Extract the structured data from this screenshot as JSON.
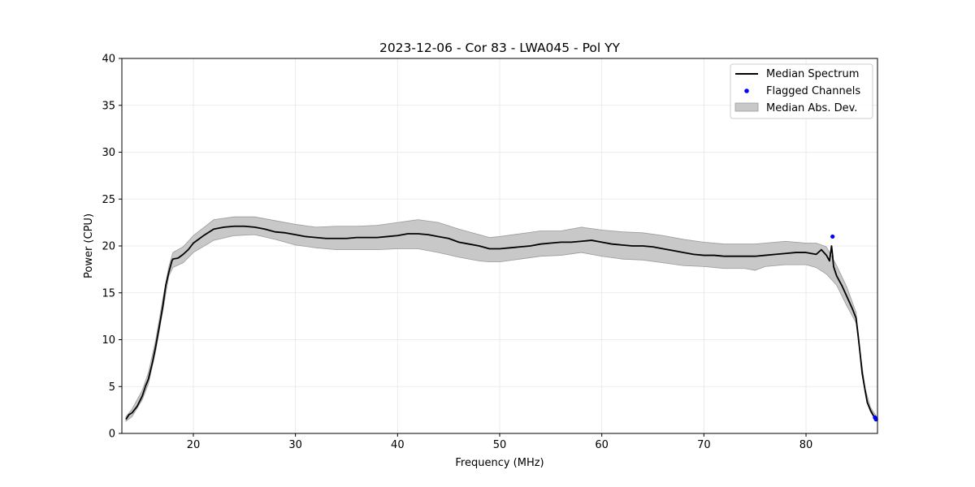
{
  "chart_data": {
    "type": "line",
    "title": "2023-12-06 - Cor 83 - LWA045 - Pol YY",
    "xlabel": "Frequency (MHz)",
    "ylabel": "Power (CPU)",
    "xlim": [
      13.0,
      87.0
    ],
    "ylim": [
      0,
      40
    ],
    "xticks": [
      20,
      30,
      40,
      50,
      60,
      70,
      80
    ],
    "xtick_labels": [
      "20",
      "30",
      "40",
      "50",
      "60",
      "70",
      "80"
    ],
    "yticks": [
      0,
      5,
      10,
      15,
      20,
      25,
      30,
      35,
      40
    ],
    "ytick_labels": [
      "0",
      "5",
      "10",
      "15",
      "20",
      "25",
      "30",
      "35",
      "40"
    ],
    "grid": true,
    "legend_position": "top-right",
    "series": [
      {
        "name": "Median Spectrum",
        "kind": "line",
        "color": "#000000",
        "x": [
          13.4,
          13.7,
          14.0,
          14.5,
          15.0,
          15.3,
          15.6,
          16.0,
          16.3,
          16.6,
          17.0,
          17.3,
          17.6,
          17.9,
          18.0,
          18.5,
          19.0,
          19.5,
          20.0,
          21.0,
          22.0,
          23.0,
          24.0,
          25.0,
          26.0,
          27.0,
          28.0,
          29.0,
          30.0,
          31.0,
          32.0,
          33.0,
          34.0,
          35.0,
          36.0,
          37.0,
          38.0,
          39.0,
          40.0,
          41.0,
          42.0,
          43.0,
          44.0,
          45.0,
          46.0,
          47.0,
          48.0,
          49.0,
          50.0,
          51.0,
          52.0,
          53.0,
          54.0,
          55.0,
          56.0,
          57.0,
          58.0,
          59.0,
          60.0,
          61.0,
          62.0,
          63.0,
          64.0,
          65.0,
          66.0,
          67.0,
          68.0,
          69.0,
          70.0,
          71.0,
          72.0,
          73.0,
          74.0,
          75.0,
          76.0,
          77.0,
          78.0,
          79.0,
          80.0,
          80.5,
          81.0,
          81.5,
          82.0,
          82.3,
          82.5,
          82.6,
          82.7,
          83.0,
          83.5,
          84.0,
          84.5,
          84.9,
          85.1,
          85.3,
          85.5,
          85.8,
          86.0,
          86.3,
          86.6,
          86.85
        ],
        "y": [
          1.5,
          2.0,
          2.2,
          2.9,
          4.0,
          5.0,
          5.8,
          7.6,
          9.2,
          11.0,
          13.5,
          15.8,
          17.2,
          18.4,
          18.6,
          18.7,
          19.1,
          19.6,
          20.3,
          21.1,
          21.8,
          22.0,
          22.1,
          22.1,
          22.0,
          21.8,
          21.5,
          21.4,
          21.2,
          21.0,
          20.9,
          20.8,
          20.8,
          20.8,
          20.9,
          20.9,
          20.9,
          21.0,
          21.1,
          21.3,
          21.3,
          21.2,
          21.0,
          20.8,
          20.4,
          20.2,
          20.0,
          19.7,
          19.7,
          19.8,
          19.9,
          20.0,
          20.2,
          20.3,
          20.4,
          20.4,
          20.5,
          20.6,
          20.4,
          20.2,
          20.1,
          20.0,
          20.0,
          19.9,
          19.7,
          19.5,
          19.3,
          19.1,
          19.0,
          19.0,
          18.9,
          18.9,
          18.9,
          18.9,
          19.0,
          19.1,
          19.2,
          19.3,
          19.3,
          19.2,
          19.1,
          19.6,
          19.0,
          18.4,
          20.0,
          19.0,
          17.8,
          16.8,
          15.8,
          14.6,
          13.4,
          12.3,
          10.5,
          8.5,
          6.4,
          4.5,
          3.3,
          2.5,
          1.9,
          1.6
        ]
      },
      {
        "name": "Flagged Channels",
        "kind": "scatter",
        "color": "#0000ff",
        "x": [
          82.6,
          86.75,
          86.85
        ],
        "y": [
          21.0,
          1.7,
          1.5
        ]
      },
      {
        "name": "Median Abs. Dev.",
        "kind": "band",
        "color": "#c8c8c8",
        "edge_color": "#9a9a9a",
        "x": [
          13.4,
          14.0,
          15.0,
          15.6,
          16.3,
          17.0,
          17.6,
          18.0,
          19.0,
          20.0,
          22.0,
          24.0,
          26.0,
          28.0,
          30.0,
          32.0,
          34.0,
          36.0,
          38.0,
          40.0,
          42.0,
          44.0,
          46.0,
          48.0,
          49.0,
          50.0,
          52.0,
          54.0,
          56.0,
          58.0,
          60.0,
          62.0,
          64.0,
          66.0,
          68.0,
          70.0,
          72.0,
          74.0,
          75.0,
          76.0,
          78.0,
          80.0,
          81.0,
          82.0,
          83.0,
          84.0,
          84.9,
          85.3,
          85.8,
          86.3,
          86.85
        ],
        "lower": [
          1.3,
          1.8,
          3.6,
          5.3,
          8.7,
          13.0,
          16.8,
          17.7,
          18.2,
          19.3,
          20.6,
          21.1,
          21.2,
          20.7,
          20.1,
          19.8,
          19.6,
          19.6,
          19.6,
          19.7,
          19.7,
          19.3,
          18.8,
          18.4,
          18.3,
          18.3,
          18.6,
          18.9,
          19.0,
          19.3,
          18.9,
          18.6,
          18.5,
          18.2,
          17.9,
          17.8,
          17.6,
          17.6,
          17.4,
          17.8,
          18.0,
          18.0,
          17.7,
          17.0,
          15.8,
          13.6,
          11.8,
          8.3,
          4.3,
          2.3,
          1.4
        ],
        "upper": [
          1.8,
          2.6,
          4.6,
          6.5,
          9.9,
          14.3,
          17.8,
          19.3,
          19.9,
          21.1,
          22.8,
          23.1,
          23.1,
          22.7,
          22.3,
          22.0,
          22.1,
          22.1,
          22.2,
          22.5,
          22.8,
          22.5,
          21.8,
          21.2,
          20.9,
          21.0,
          21.3,
          21.6,
          21.6,
          22.0,
          21.7,
          21.5,
          21.4,
          21.1,
          20.7,
          20.4,
          20.2,
          20.2,
          20.2,
          20.3,
          20.5,
          20.3,
          20.3,
          19.9,
          17.9,
          15.6,
          12.9,
          8.7,
          4.8,
          2.8,
          1.9
        ]
      }
    ]
  },
  "legend": {
    "items": [
      {
        "label": "Median Spectrum"
      },
      {
        "label": "Flagged Channels"
      },
      {
        "label": "Median Abs. Dev."
      }
    ]
  }
}
